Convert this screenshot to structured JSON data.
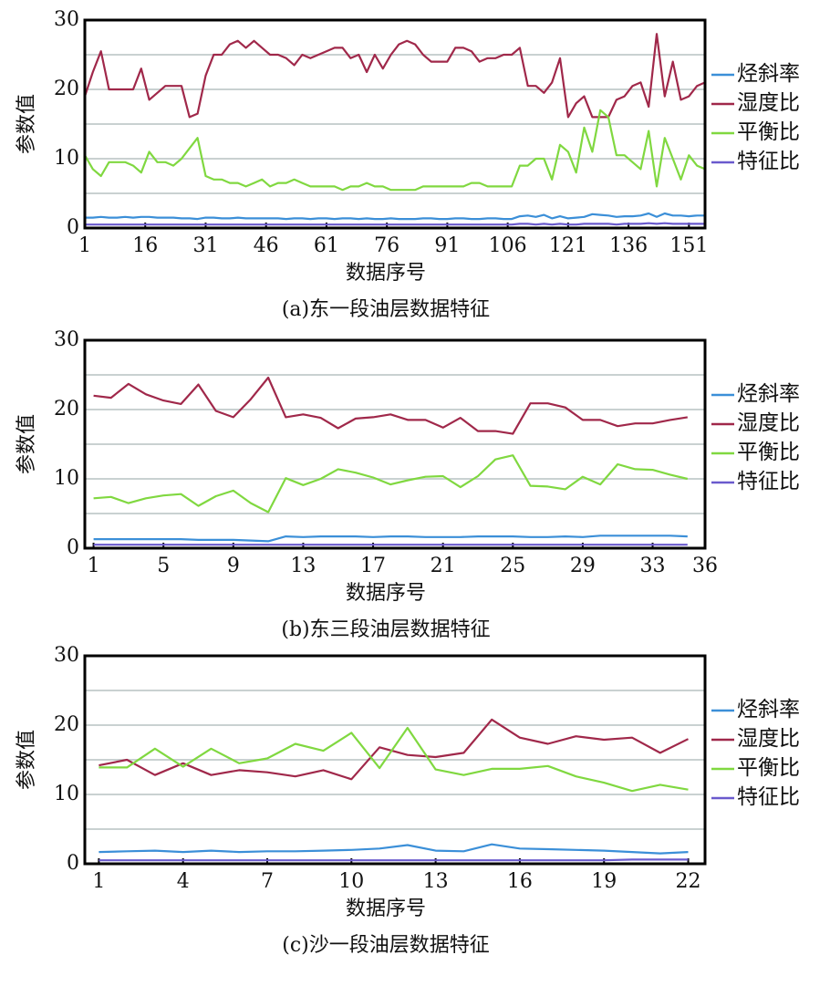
{
  "chart_data": [
    {
      "type": "line",
      "title": "(a)东一段油层数据特征",
      "xlabel": "数据序号",
      "ylabel": "参数值",
      "x": [
        1,
        3,
        5,
        7,
        9,
        11,
        13,
        15,
        17,
        19,
        21,
        23,
        25,
        27,
        29,
        31,
        33,
        35,
        37,
        39,
        41,
        43,
        45,
        47,
        49,
        51,
        53,
        55,
        57,
        59,
        61,
        63,
        65,
        67,
        69,
        71,
        73,
        75,
        77,
        79,
        81,
        83,
        85,
        87,
        89,
        91,
        93,
        95,
        97,
        99,
        101,
        103,
        105,
        107,
        109,
        111,
        113,
        115,
        117,
        119,
        121,
        123,
        125,
        127,
        129,
        131,
        133,
        135,
        137,
        139,
        141,
        143,
        145,
        147,
        149,
        151,
        153,
        155
      ],
      "xlim": [
        1,
        155
      ],
      "xticks": [
        1,
        16,
        31,
        46,
        61,
        76,
        91,
        106,
        121,
        136,
        151
      ],
      "ylim": [
        0,
        30
      ],
      "yticks": [
        0,
        10,
        20,
        30
      ],
      "yminor": [
        5,
        15,
        25
      ],
      "grid": true,
      "legend": "right",
      "series": [
        {
          "name": "烃斜率",
          "color": "#3b8fd8",
          "values": [
            1.5,
            1.5,
            1.6,
            1.5,
            1.5,
            1.6,
            1.5,
            1.6,
            1.6,
            1.5,
            1.5,
            1.5,
            1.4,
            1.4,
            1.3,
            1.5,
            1.5,
            1.4,
            1.4,
            1.5,
            1.4,
            1.4,
            1.4,
            1.4,
            1.4,
            1.3,
            1.4,
            1.4,
            1.3,
            1.4,
            1.4,
            1.3,
            1.4,
            1.4,
            1.3,
            1.4,
            1.3,
            1.3,
            1.4,
            1.3,
            1.3,
            1.3,
            1.4,
            1.4,
            1.3,
            1.3,
            1.4,
            1.4,
            1.3,
            1.3,
            1.4,
            1.4,
            1.3,
            1.3,
            1.7,
            1.8,
            1.6,
            1.9,
            1.4,
            1.7,
            1.4,
            1.5,
            1.6,
            2,
            1.9,
            1.8,
            1.6,
            1.7,
            1.7,
            1.8,
            2.1,
            1.6,
            2.1,
            1.8,
            1.8,
            1.7,
            1.8,
            1.8
          ]
        },
        {
          "name": "湿度比",
          "color": "#a0284a",
          "values": [
            19,
            22.5,
            25.5,
            20,
            20,
            20,
            20,
            23,
            18.5,
            19.5,
            20.5,
            20.5,
            20.5,
            16,
            16.5,
            22,
            25,
            25,
            26.5,
            27,
            26,
            27,
            26,
            25,
            25,
            24.5,
            23.5,
            25,
            24.5,
            25,
            25.5,
            26,
            26,
            24.5,
            25,
            22.5,
            25,
            23,
            25,
            26.5,
            27,
            26.5,
            25,
            24,
            24,
            24,
            26,
            26,
            25.5,
            24,
            24.5,
            24.5,
            25,
            25,
            26,
            20.5,
            20.5,
            19.5,
            21,
            24.5,
            16,
            18,
            19,
            16,
            16,
            16,
            18.5,
            19,
            20.5,
            21,
            17.5,
            28,
            19,
            24,
            18.5,
            19,
            20.5,
            21
          ]
        },
        {
          "name": "平衡比",
          "color": "#80d840",
          "values": [
            10.5,
            8.5,
            7.5,
            9.5,
            9.5,
            9.5,
            9,
            8,
            11,
            9.5,
            9.5,
            9,
            10,
            11.5,
            13,
            7.5,
            7,
            7,
            6.5,
            6.5,
            6,
            6.5,
            7,
            6,
            6.5,
            6.5,
            7,
            6.5,
            6,
            6,
            6,
            6,
            5.5,
            6,
            6,
            6.5,
            6,
            6,
            5.5,
            5.5,
            5.5,
            5.5,
            6,
            6,
            6,
            6,
            6,
            6,
            6.5,
            6.5,
            6,
            6,
            6,
            6,
            9,
            9,
            10,
            10,
            7,
            12,
            11,
            8,
            14.5,
            11,
            17,
            16,
            10.5,
            10.5,
            9.5,
            8.5,
            14,
            6,
            13,
            10,
            7,
            10.5,
            9,
            8.5
          ]
        },
        {
          "name": "特征比",
          "color": "#6a5acd",
          "values": [
            0.5,
            0.5,
            0.5,
            0.5,
            0.5,
            0.5,
            0.5,
            0.5,
            0.5,
            0.5,
            0.5,
            0.5,
            0.5,
            0.5,
            0.5,
            0.5,
            0.5,
            0.5,
            0.5,
            0.5,
            0.5,
            0.5,
            0.5,
            0.5,
            0.5,
            0.5,
            0.5,
            0.5,
            0.5,
            0.5,
            0.5,
            0.5,
            0.5,
            0.5,
            0.5,
            0.5,
            0.5,
            0.5,
            0.5,
            0.5,
            0.5,
            0.5,
            0.5,
            0.5,
            0.5,
            0.5,
            0.5,
            0.5,
            0.5,
            0.5,
            0.5,
            0.5,
            0.5,
            0.5,
            0.6,
            0.6,
            0.5,
            0.6,
            0.5,
            0.6,
            0.5,
            0.5,
            0.6,
            0.6,
            0.6,
            0.6,
            0.5,
            0.6,
            0.6,
            0.6,
            0.7,
            0.6,
            0.7,
            0.6,
            0.6,
            0.6,
            0.6,
            0.6
          ]
        }
      ]
    },
    {
      "type": "line",
      "title": "(b)东三段油层数据特征",
      "xlabel": "数据序号",
      "ylabel": "参数值",
      "x": [
        1,
        2,
        3,
        4,
        5,
        6,
        7,
        8,
        9,
        10,
        11,
        12,
        13,
        14,
        15,
        16,
        17,
        18,
        19,
        20,
        21,
        22,
        23,
        24,
        25,
        26,
        27,
        28,
        29,
        30,
        31,
        32,
        33,
        34,
        35
      ],
      "xlim": [
        0.5,
        36
      ],
      "xticks": [
        1,
        5,
        9,
        13,
        17,
        21,
        25,
        29,
        33,
        36
      ],
      "ylim": [
        0,
        30
      ],
      "yticks": [
        0,
        10,
        20,
        30
      ],
      "yminor": [
        5,
        15,
        25
      ],
      "grid": true,
      "legend": "right",
      "series": [
        {
          "name": "烃斜率",
          "color": "#3b8fd8",
          "values": [
            1.3,
            1.3,
            1.3,
            1.3,
            1.3,
            1.3,
            1.2,
            1.2,
            1.2,
            1.1,
            1,
            1.7,
            1.6,
            1.7,
            1.7,
            1.7,
            1.6,
            1.7,
            1.7,
            1.6,
            1.6,
            1.6,
            1.7,
            1.7,
            1.7,
            1.6,
            1.6,
            1.7,
            1.6,
            1.8,
            1.8,
            1.8,
            1.8,
            1.8,
            1.7
          ]
        },
        {
          "name": "湿度比",
          "color": "#a0284a",
          "values": [
            22,
            21.7,
            23.7,
            22.2,
            21.3,
            20.8,
            23.6,
            19.8,
            18.9,
            21.5,
            24.6,
            18.9,
            19.3,
            18.8,
            17.3,
            18.7,
            18.9,
            19.3,
            18.5,
            18.5,
            17.4,
            18.8,
            16.9,
            16.9,
            16.5,
            20.9,
            20.9,
            20.3,
            18.5,
            18.5,
            17.6,
            18,
            18,
            18.5,
            18.9
          ]
        },
        {
          "name": "平衡比",
          "color": "#80d840",
          "values": [
            7.2,
            7.4,
            6.5,
            7.2,
            7.6,
            7.8,
            6.1,
            7.5,
            8.3,
            6.5,
            5.2,
            10.1,
            9.1,
            10,
            11.4,
            10.9,
            10.2,
            9.2,
            9.8,
            10.3,
            10.4,
            8.8,
            10.4,
            12.8,
            13.4,
            9,
            8.9,
            8.5,
            10.3,
            9.2,
            12.1,
            11.4,
            11.3,
            10.6,
            10
          ]
        },
        {
          "name": "特征比",
          "color": "#6a5acd",
          "values": [
            0.5,
            0.5,
            0.5,
            0.5,
            0.5,
            0.5,
            0.5,
            0.5,
            0.5,
            0.5,
            0.5,
            0.5,
            0.5,
            0.5,
            0.5,
            0.5,
            0.5,
            0.5,
            0.5,
            0.5,
            0.5,
            0.5,
            0.5,
            0.5,
            0.5,
            0.5,
            0.5,
            0.5,
            0.5,
            0.5,
            0.5,
            0.5,
            0.5,
            0.5,
            0.5
          ]
        }
      ]
    },
    {
      "type": "line",
      "title": "(c)沙一段油层数据特征",
      "xlabel": "数据序号",
      "ylabel": "参数值",
      "x": [
        1,
        2,
        3,
        4,
        5,
        6,
        7,
        8,
        9,
        10,
        11,
        12,
        13,
        14,
        15,
        16,
        17,
        18,
        19,
        20,
        21,
        22
      ],
      "xlim": [
        0.5,
        22.6
      ],
      "xticks": [
        1,
        4,
        7,
        10,
        13,
        16,
        19,
        22
      ],
      "ylim": [
        0,
        30
      ],
      "yticks": [
        0,
        10,
        20,
        30
      ],
      "yminor": [
        5,
        15,
        25
      ],
      "grid": true,
      "legend": "right",
      "series": [
        {
          "name": "烃斜率",
          "color": "#3b8fd8",
          "values": [
            1.7,
            1.8,
            1.9,
            1.7,
            1.9,
            1.7,
            1.8,
            1.8,
            1.9,
            2,
            2.2,
            2.7,
            1.9,
            1.8,
            2.8,
            2.2,
            2.1,
            2,
            1.9,
            1.7,
            1.5,
            1.7
          ]
        },
        {
          "name": "湿度比",
          "color": "#a0284a",
          "values": [
            14.2,
            15,
            12.8,
            14.5,
            12.8,
            13.5,
            13.2,
            12.6,
            13.5,
            12.2,
            16.8,
            15.7,
            15.4,
            16,
            20.8,
            18.2,
            17.3,
            18.4,
            17.9,
            18.2,
            16,
            18
          ]
        },
        {
          "name": "平衡比",
          "color": "#80d840",
          "values": [
            13.9,
            13.9,
            16.6,
            14,
            16.6,
            14.5,
            15.2,
            17.3,
            16.3,
            18.9,
            13.8,
            19.6,
            13.6,
            12.8,
            13.7,
            13.7,
            14.1,
            12.6,
            11.7,
            10.5,
            11.4,
            10.7
          ]
        },
        {
          "name": "特征比",
          "color": "#6a5acd",
          "values": [
            0.5,
            0.5,
            0.5,
            0.5,
            0.5,
            0.5,
            0.5,
            0.5,
            0.5,
            0.5,
            0.5,
            0.5,
            0.5,
            0.5,
            0.5,
            0.5,
            0.5,
            0.5,
            0.5,
            0.6,
            0.6,
            0.6
          ]
        }
      ]
    }
  ]
}
